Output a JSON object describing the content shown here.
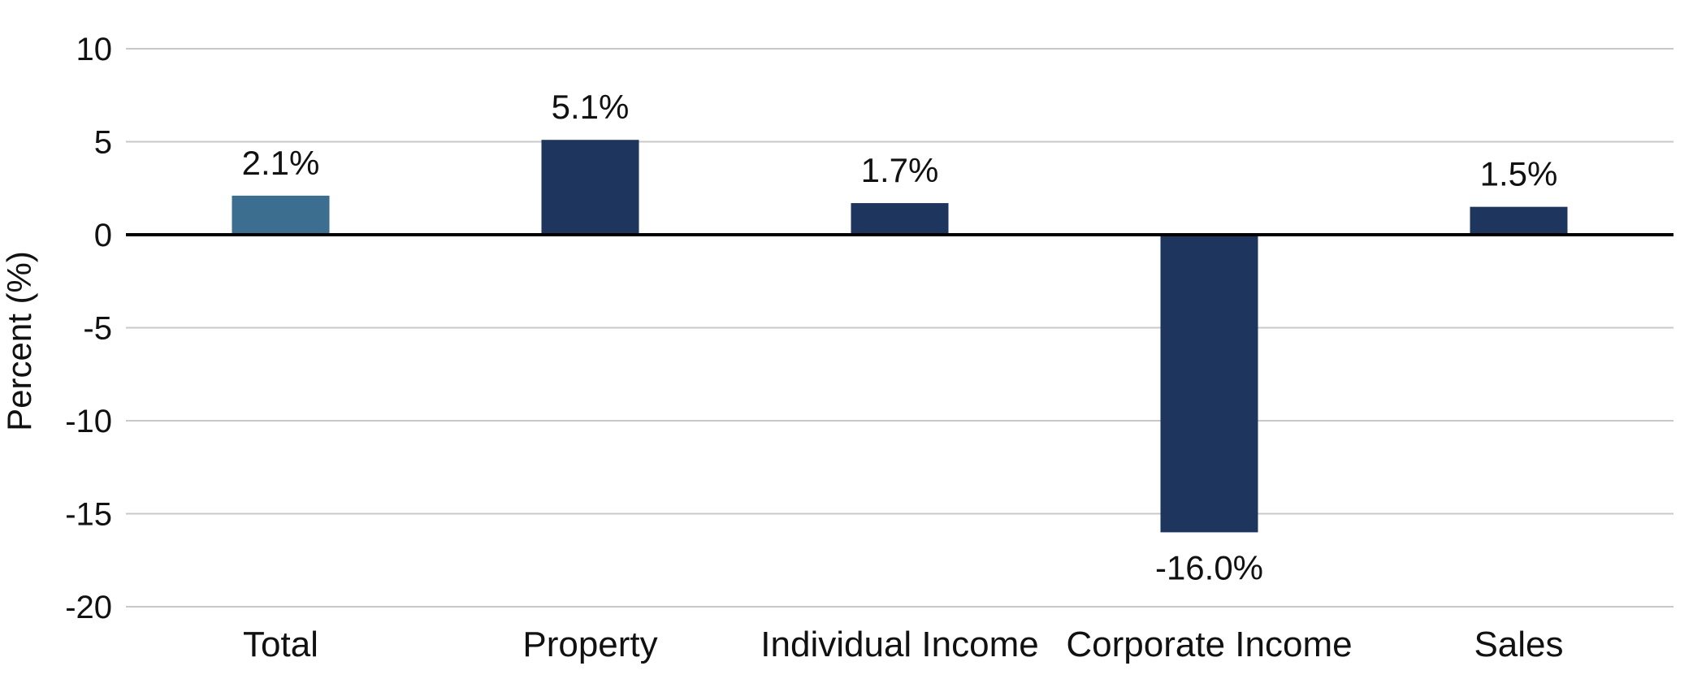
{
  "chart_data": {
    "type": "bar",
    "title": "",
    "xlabel": "",
    "ylabel": "Percent (%)",
    "ylim": [
      -20,
      10
    ],
    "yticks": [
      "10",
      "5",
      "0",
      "-5",
      "-10",
      "-15",
      "-20"
    ],
    "grid": true,
    "categories": [
      "Total",
      "Property",
      "Individual Income",
      "Corporate Income",
      "Sales"
    ],
    "values": [
      2.1,
      5.1,
      1.7,
      -16.0,
      1.5
    ],
    "data_labels": [
      "2.1%",
      "5.1%",
      "1.7%",
      "-16.0%",
      "1.5%"
    ],
    "colors": [
      "#3b6e8f",
      "#1e355e",
      "#1e355e",
      "#1e355e",
      "#1e355e"
    ],
    "gridline_color": "#c8c8c8",
    "zero_line_color": "#000000"
  }
}
